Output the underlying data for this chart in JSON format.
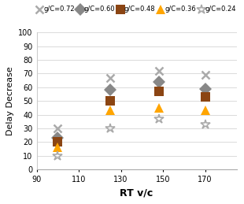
{
  "x_values": [
    100,
    125,
    148,
    170
  ],
  "series_order": [
    "g/C=0.72",
    "g/C=0.60",
    "g/C=0.48",
    "g/C=0.36",
    "g/C=0.24"
  ],
  "series": {
    "g/C=0.72": {
      "y": [
        30,
        67,
        72,
        69
      ],
      "color": "#aaaaaa",
      "marker": "x",
      "ms": 7,
      "mew": 1.8
    },
    "g/C=0.60": {
      "y": [
        23,
        58,
        64,
        59
      ],
      "color": "#888888",
      "marker": "D",
      "ms": 8,
      "mew": 0
    },
    "g/C=0.48": {
      "y": [
        20,
        50,
        57,
        53
      ],
      "color": "#8B4513",
      "marker": "s",
      "ms": 8,
      "mew": 0
    },
    "g/C=0.36": {
      "y": [
        16,
        43,
        45,
        43
      ],
      "color": "#FFA500",
      "marker": "^",
      "ms": 8,
      "mew": 0
    },
    "g/C=0.24": {
      "y": [
        10,
        30,
        37,
        33
      ],
      "color": "#aaaaaa",
      "marker": "*",
      "ms": 9,
      "mew": 1.2
    }
  },
  "xlabel": "RT v/c",
  "ylabel": "Delay Decrease",
  "xlim": [
    90,
    185
  ],
  "ylim": [
    0,
    100
  ],
  "xticks": [
    90,
    110,
    130,
    150,
    170
  ],
  "yticks": [
    0,
    10,
    20,
    30,
    40,
    50,
    60,
    70,
    80,
    90,
    100
  ],
  "background_color": "#ffffff",
  "grid_color": "#cccccc",
  "legend_labels": [
    "g/C=0.72",
    "g/C=0.60",
    "g/C=0.48",
    "g/C=0.36",
    "g/C=0.24"
  ]
}
